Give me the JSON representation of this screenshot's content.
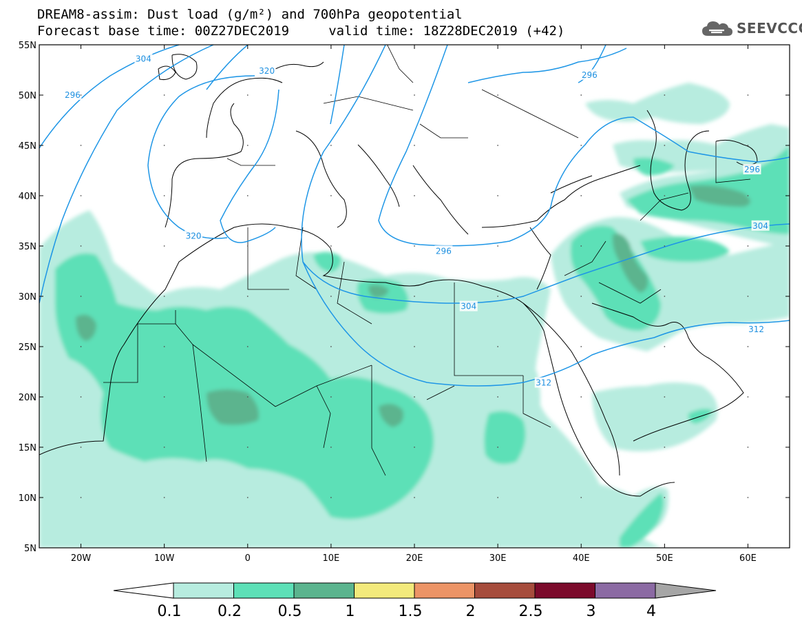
{
  "title": {
    "line1": "DREAM8-assim: Dust load (g/m²) and 700hPa geopotential",
    "line2": "Forecast base time: 00Z27DEC2019     valid time: 18Z28DEC2019 (+42)"
  },
  "logo": {
    "icon": "cloud-icon",
    "text": "SEEVCCC"
  },
  "map": {
    "lon_range": [
      -25,
      65
    ],
    "lat_range": [
      5,
      55
    ],
    "lat_labels": [
      "55N",
      "50N",
      "45N",
      "40N",
      "35N",
      "30N",
      "25N",
      "20N",
      "15N",
      "10N",
      "5N"
    ],
    "lon_labels": [
      "20W",
      "10W",
      "0",
      "10E",
      "20E",
      "30E",
      "40E",
      "50E",
      "60E"
    ],
    "contour_color": "#1e96e6",
    "contour_labels": [
      {
        "text": "304",
        "lon": -12.5,
        "lat": 53.6
      },
      {
        "text": "296",
        "lon": -21,
        "lat": 50.0
      },
      {
        "text": "320",
        "lon": 2.3,
        "lat": 52.4
      },
      {
        "text": "320",
        "lon": -6.5,
        "lat": 36.0
      },
      {
        "text": "296",
        "lon": 41.0,
        "lat": 52.0
      },
      {
        "text": "296",
        "lon": 23.5,
        "lat": 34.5
      },
      {
        "text": "296",
        "lon": 60.5,
        "lat": 42.6
      },
      {
        "text": "304",
        "lon": 26.5,
        "lat": 29.0
      },
      {
        "text": "304",
        "lon": 61.5,
        "lat": 37.0
      },
      {
        "text": "312",
        "lon": 35.5,
        "lat": 21.4
      },
      {
        "text": "312",
        "lon": 61.0,
        "lat": 26.7
      }
    ]
  },
  "colorbar": {
    "labels": [
      "0.1",
      "0.2",
      "0.5",
      "1",
      "1.5",
      "2",
      "2.5",
      "3",
      "4"
    ],
    "colors": [
      "#b7ecdf",
      "#5de0b7",
      "#5bb48e",
      "#f3ea7c",
      "#ec9466",
      "#a64c3c",
      "#7b0a2b",
      "#8b6aa3"
    ],
    "low_color": "#ffffff",
    "high_color": "#a6a6a6"
  }
}
